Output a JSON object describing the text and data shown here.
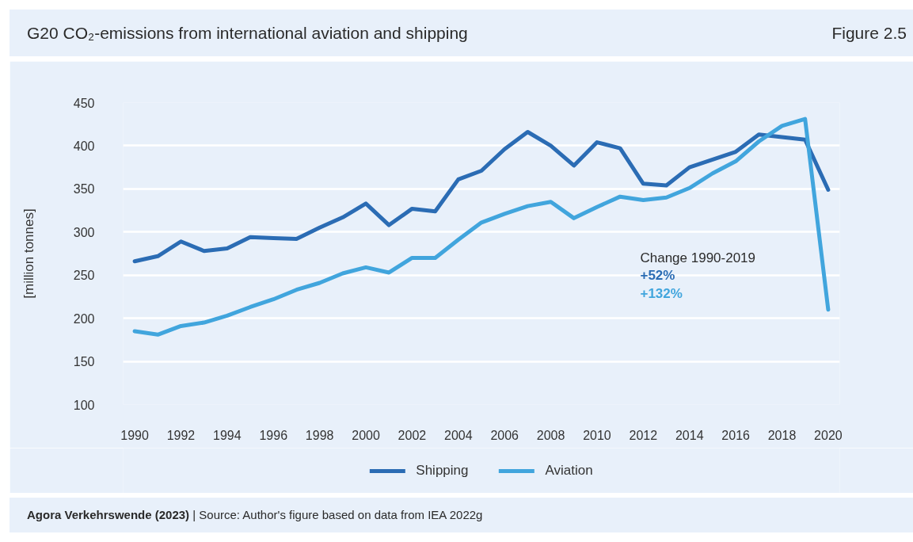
{
  "chart_data": {
    "type": "line",
    "title": "G20 CO₂-emissions from international aviation and shipping",
    "subtitle": "Figure 2.5",
    "ylabel": "[million tonnes]",
    "annotations": [
      "Change 1990-2019",
      "+52%",
      "+132%",
      "Agora Verkehrswende (2023)",
      "| Source: Author's figure based on data from IEA 2022g"
    ],
    "x": [
      1990,
      1991,
      1992,
      1993,
      1994,
      1995,
      1996,
      1997,
      1998,
      1999,
      2000,
      2001,
      2002,
      2003,
      2004,
      2005,
      2006,
      2007,
      2008,
      2009,
      2010,
      2011,
      2012,
      2013,
      2014,
      2015,
      2016,
      2017,
      2018,
      2019,
      2020
    ],
    "series": [
      {
        "name": "Shipping",
        "color": "#2b6cb4",
        "values": [
          266,
          272,
          289,
          278,
          281,
          294,
          293,
          292,
          305,
          317,
          333,
          308,
          327,
          324,
          361,
          371,
          396,
          416,
          400,
          377,
          404,
          397,
          356,
          354,
          375,
          384,
          393,
          413,
          410,
          407,
          349
        ]
      },
      {
        "name": "Aviation",
        "color": "#41a5dd",
        "values": [
          185,
          181,
          191,
          195,
          203,
          213,
          222,
          233,
          241,
          252,
          259,
          253,
          270,
          270,
          291,
          311,
          321,
          330,
          335,
          316,
          329,
          341,
          337,
          340,
          351,
          368,
          382,
          405,
          423,
          431,
          210
        ]
      }
    ],
    "xlim": [
      1989.5,
      2020.5
    ],
    "xticks": [
      1990,
      1992,
      1994,
      1996,
      1998,
      2000,
      2002,
      2004,
      2006,
      2008,
      2010,
      2012,
      2014,
      2016,
      2018,
      2020
    ],
    "ylim": [
      100,
      450
    ],
    "yticks": [
      100,
      150,
      200,
      250,
      300,
      350,
      400,
      450
    ],
    "grid": "y",
    "legend": "bottom",
    "line_style": "solid"
  }
}
